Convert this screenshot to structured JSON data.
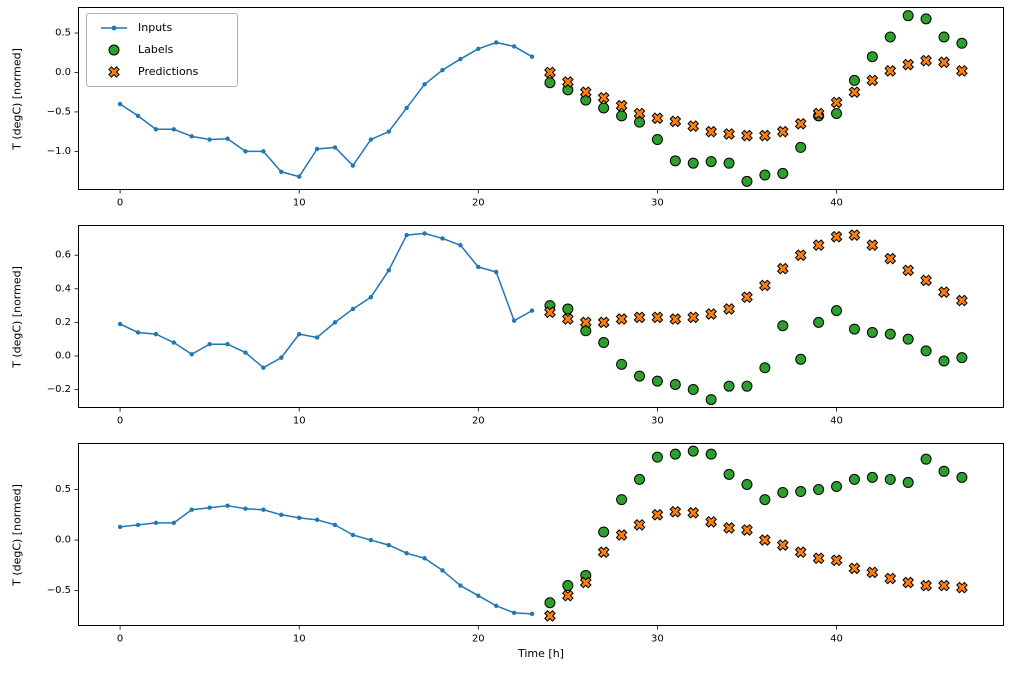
{
  "figure": {
    "background": "#ffffff",
    "xlabel": "Time [h]",
    "legend": {
      "position": "upper left",
      "items": [
        {
          "name": "inputs",
          "label": "Inputs",
          "marker": "line-dot",
          "color": "#1f77b4",
          "edge": "#1f77b4"
        },
        {
          "name": "labels",
          "label": "Labels",
          "marker": "circle",
          "color": "#2ca02c",
          "edge": "#000000"
        },
        {
          "name": "predictions",
          "label": "Predictions",
          "marker": "x-filled",
          "color": "#ff7f0e",
          "edge": "#000000"
        }
      ]
    }
  },
  "chart_data": [
    {
      "type": "line",
      "title": "",
      "ylabel": "T (degC) [normed]",
      "xlim": [
        -2.35,
        49.35
      ],
      "ylim": [
        -1.49,
        0.83
      ],
      "grid": false,
      "xticks": [
        {
          "v": 0,
          "label": "0"
        },
        {
          "v": 10,
          "label": "10"
        },
        {
          "v": 20,
          "label": "20"
        },
        {
          "v": 30,
          "label": "30"
        },
        {
          "v": 40,
          "label": "40"
        }
      ],
      "yticks": [
        {
          "v": 0.5,
          "label": "0.5"
        },
        {
          "v": 0.0,
          "label": "0.0"
        },
        {
          "v": -0.5,
          "label": "−0.5"
        },
        {
          "v": -1.0,
          "label": "−1.0"
        }
      ],
      "series": [
        {
          "name": "Inputs",
          "type": "line",
          "color": "#1f77b4",
          "edge": "#1f77b4",
          "x": [
            0,
            1,
            2,
            3,
            4,
            5,
            6,
            7,
            8,
            9,
            10,
            11,
            12,
            13,
            14,
            15,
            16,
            17,
            18,
            19,
            20,
            21,
            22,
            23
          ],
          "y": [
            -0.4,
            -0.55,
            -0.72,
            -0.72,
            -0.81,
            -0.85,
            -0.84,
            -1.0,
            -1.0,
            -1.26,
            -1.32,
            -0.97,
            -0.95,
            -1.18,
            -0.85,
            -0.75,
            -0.45,
            -0.15,
            0.03,
            0.17,
            0.3,
            0.38,
            0.33,
            0.2
          ]
        },
        {
          "name": "Labels",
          "type": "scatter-circle",
          "color": "#2ca02c",
          "edge": "#000000",
          "x": [
            24,
            25,
            26,
            27,
            28,
            29,
            30,
            31,
            32,
            33,
            34,
            35,
            36,
            37,
            38,
            39,
            40,
            41,
            42,
            43,
            44,
            45,
            46,
            47
          ],
          "y": [
            -0.13,
            -0.22,
            -0.35,
            -0.45,
            -0.55,
            -0.63,
            -0.85,
            -1.12,
            -1.15,
            -1.13,
            -1.15,
            -1.38,
            -1.3,
            -1.28,
            -0.95,
            -0.55,
            -0.52,
            -0.1,
            0.2,
            0.45,
            0.72,
            0.68,
            0.45,
            0.37
          ]
        },
        {
          "name": "Predictions",
          "type": "scatter-x",
          "color": "#ff7f0e",
          "edge": "#000000",
          "x": [
            24,
            25,
            26,
            27,
            28,
            29,
            30,
            31,
            32,
            33,
            34,
            35,
            36,
            37,
            38,
            39,
            40,
            41,
            42,
            43,
            44,
            45,
            46,
            47
          ],
          "y": [
            0.0,
            -0.12,
            -0.25,
            -0.32,
            -0.42,
            -0.52,
            -0.58,
            -0.62,
            -0.68,
            -0.75,
            -0.78,
            -0.8,
            -0.8,
            -0.75,
            -0.65,
            -0.52,
            -0.38,
            -0.25,
            -0.1,
            0.02,
            0.1,
            0.15,
            0.13,
            0.02
          ]
        }
      ]
    },
    {
      "type": "line",
      "title": "",
      "ylabel": "T (degC) [normed]",
      "xlim": [
        -2.35,
        49.35
      ],
      "ylim": [
        -0.31,
        0.78
      ],
      "grid": false,
      "xticks": [
        {
          "v": 0,
          "label": "0"
        },
        {
          "v": 10,
          "label": "10"
        },
        {
          "v": 20,
          "label": "20"
        },
        {
          "v": 30,
          "label": "30"
        },
        {
          "v": 40,
          "label": "40"
        }
      ],
      "yticks": [
        {
          "v": 0.6,
          "label": "0.6"
        },
        {
          "v": 0.4,
          "label": "0.4"
        },
        {
          "v": 0.2,
          "label": "0.2"
        },
        {
          "v": 0.0,
          "label": "0.0"
        },
        {
          "v": -0.2,
          "label": "−0.2"
        }
      ],
      "series": [
        {
          "name": "Inputs",
          "type": "line",
          "color": "#1f77b4",
          "edge": "#1f77b4",
          "x": [
            0,
            1,
            2,
            3,
            4,
            5,
            6,
            7,
            8,
            9,
            10,
            11,
            12,
            13,
            14,
            15,
            16,
            17,
            18,
            19,
            20,
            21,
            22,
            23
          ],
          "y": [
            0.19,
            0.14,
            0.13,
            0.08,
            0.01,
            0.07,
            0.07,
            0.02,
            -0.07,
            -0.01,
            0.13,
            0.11,
            0.2,
            0.28,
            0.35,
            0.51,
            0.72,
            0.73,
            0.7,
            0.66,
            0.53,
            0.5,
            0.21,
            0.27
          ]
        },
        {
          "name": "Labels",
          "type": "scatter-circle",
          "color": "#2ca02c",
          "edge": "#000000",
          "x": [
            24,
            25,
            26,
            27,
            28,
            29,
            30,
            31,
            32,
            33,
            34,
            35,
            36,
            37,
            38,
            39,
            40,
            41,
            42,
            43,
            44,
            45,
            46,
            47
          ],
          "y": [
            0.3,
            0.28,
            0.15,
            0.08,
            -0.05,
            -0.12,
            -0.15,
            -0.17,
            -0.2,
            -0.26,
            -0.18,
            -0.18,
            -0.07,
            0.18,
            -0.02,
            0.2,
            0.27,
            0.16,
            0.14,
            0.13,
            0.1,
            0.03,
            -0.03,
            -0.01
          ]
        },
        {
          "name": "Predictions",
          "type": "scatter-x",
          "color": "#ff7f0e",
          "edge": "#000000",
          "x": [
            24,
            25,
            26,
            27,
            28,
            29,
            30,
            31,
            32,
            33,
            34,
            35,
            36,
            37,
            38,
            39,
            40,
            41,
            42,
            43,
            44,
            45,
            46,
            47
          ],
          "y": [
            0.26,
            0.22,
            0.2,
            0.2,
            0.22,
            0.23,
            0.23,
            0.22,
            0.23,
            0.25,
            0.28,
            0.35,
            0.42,
            0.52,
            0.6,
            0.66,
            0.71,
            0.72,
            0.66,
            0.58,
            0.51,
            0.45,
            0.38,
            0.33
          ]
        }
      ]
    },
    {
      "type": "line",
      "title": "",
      "ylabel": "T (degC) [normed]",
      "xlabel": "Time [h]",
      "xlim": [
        -2.35,
        49.35
      ],
      "ylim": [
        -0.85,
        0.96
      ],
      "grid": false,
      "xticks": [
        {
          "v": 0,
          "label": "0"
        },
        {
          "v": 10,
          "label": "10"
        },
        {
          "v": 20,
          "label": "20"
        },
        {
          "v": 30,
          "label": "30"
        },
        {
          "v": 40,
          "label": "40"
        }
      ],
      "yticks": [
        {
          "v": 0.5,
          "label": "0.5"
        },
        {
          "v": 0.0,
          "label": "0.0"
        },
        {
          "v": -0.5,
          "label": "−0.5"
        }
      ],
      "series": [
        {
          "name": "Inputs",
          "type": "line",
          "color": "#1f77b4",
          "edge": "#1f77b4",
          "x": [
            0,
            1,
            2,
            3,
            4,
            5,
            6,
            7,
            8,
            9,
            10,
            11,
            12,
            13,
            14,
            15,
            16,
            17,
            18,
            19,
            20,
            21,
            22,
            23
          ],
          "y": [
            0.13,
            0.15,
            0.17,
            0.17,
            0.3,
            0.32,
            0.34,
            0.31,
            0.3,
            0.25,
            0.22,
            0.2,
            0.15,
            0.05,
            0.0,
            -0.05,
            -0.13,
            -0.18,
            -0.3,
            -0.45,
            -0.55,
            -0.65,
            -0.72,
            -0.73
          ]
        },
        {
          "name": "Labels",
          "type": "scatter-circle",
          "color": "#2ca02c",
          "edge": "#000000",
          "x": [
            24,
            25,
            26,
            27,
            28,
            29,
            30,
            31,
            32,
            33,
            34,
            35,
            36,
            37,
            38,
            39,
            40,
            41,
            42,
            43,
            44,
            45,
            46,
            47
          ],
          "y": [
            -0.62,
            -0.45,
            -0.35,
            0.08,
            0.4,
            0.6,
            0.82,
            0.85,
            0.88,
            0.85,
            0.65,
            0.55,
            0.4,
            0.47,
            0.48,
            0.5,
            0.53,
            0.6,
            0.62,
            0.6,
            0.57,
            0.8,
            0.68,
            0.62
          ]
        },
        {
          "name": "Predictions",
          "type": "scatter-x",
          "color": "#ff7f0e",
          "edge": "#000000",
          "x": [
            24,
            25,
            26,
            27,
            28,
            29,
            30,
            31,
            32,
            33,
            34,
            35,
            36,
            37,
            38,
            39,
            40,
            41,
            42,
            43,
            44,
            45,
            46,
            47
          ],
          "y": [
            -0.75,
            -0.55,
            -0.42,
            -0.12,
            0.05,
            0.15,
            0.25,
            0.28,
            0.27,
            0.18,
            0.12,
            0.1,
            0.0,
            -0.05,
            -0.12,
            -0.18,
            -0.2,
            -0.28,
            -0.32,
            -0.38,
            -0.42,
            -0.45,
            -0.45,
            -0.47
          ]
        }
      ]
    }
  ]
}
